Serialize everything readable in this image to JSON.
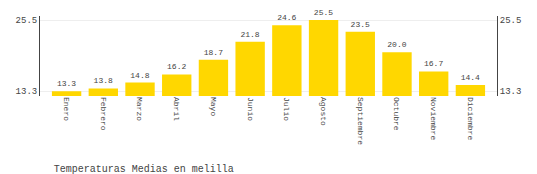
{
  "chart_data": {
    "type": "bar",
    "title": "Temperaturas Medias en melilla",
    "categories": [
      "Enero",
      "Febrero",
      "Marzo",
      "Abril",
      "Mayo",
      "Junio",
      "Julio",
      "Agosto",
      "Septiembre",
      "Octubre",
      "Noviembre",
      "Diciembre"
    ],
    "values": [
      13.3,
      13.8,
      14.8,
      16.2,
      18.7,
      21.8,
      24.6,
      25.5,
      23.5,
      20.0,
      16.7,
      14.4
    ],
    "value_labels": [
      "13.3",
      "13.8",
      "14.8",
      "16.2",
      "18.7",
      "21.8",
      "24.6",
      "25.5",
      "23.5",
      "20.0",
      "16.7",
      "14.4"
    ],
    "color": "#FFD700",
    "ylim": [
      12.5,
      26.2
    ],
    "yticks": [
      13.3,
      25.5
    ],
    "y2lim": [
      12.5,
      26.2
    ],
    "y2ticks": [
      13.3,
      25.5
    ],
    "grid": true,
    "data_labels": true
  }
}
